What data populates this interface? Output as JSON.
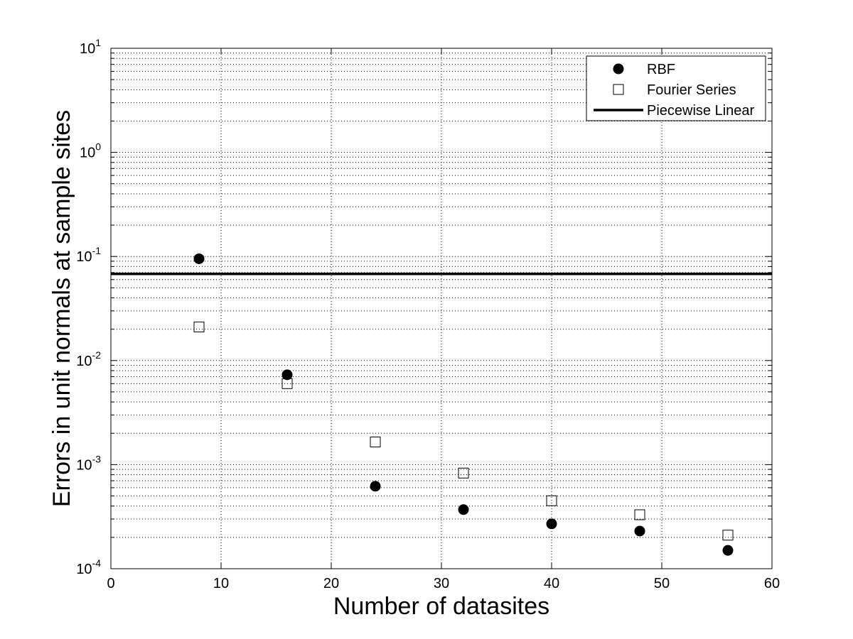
{
  "chart_data": {
    "type": "scatter",
    "xlabel": "Number of datasites",
    "ylabel": "Errors in unit normals at sample sites",
    "xlim": [
      0,
      60
    ],
    "ylim": [
      0.0001,
      10
    ],
    "yscale": "log",
    "grid": true,
    "legend_position": "top-right",
    "x_ticks": [
      0,
      10,
      20,
      30,
      40,
      50,
      60
    ],
    "y_ticks": [
      {
        "value": 0.0001,
        "base": "10",
        "exp": "-4"
      },
      {
        "value": 0.001,
        "base": "10",
        "exp": "-3"
      },
      {
        "value": 0.01,
        "base": "10",
        "exp": "-2"
      },
      {
        "value": 0.1,
        "base": "10",
        "exp": "-1"
      },
      {
        "value": 1,
        "base": "10",
        "exp": "0"
      },
      {
        "value": 10,
        "base": "10",
        "exp": "1"
      }
    ],
    "series": [
      {
        "name": "RBF",
        "marker": "filled-circle",
        "x": [
          8,
          16,
          24,
          32,
          40,
          48,
          56
        ],
        "y": [
          0.095,
          0.0073,
          0.00062,
          0.00037,
          0.00027,
          0.00023,
          0.00015
        ]
      },
      {
        "name": "Fourier Series",
        "marker": "open-square",
        "x": [
          8,
          16,
          24,
          32,
          40,
          48,
          56
        ],
        "y": [
          0.021,
          0.006,
          0.00165,
          0.00083,
          0.00045,
          0.00033,
          0.00021
        ]
      },
      {
        "name": "Piecewise Linear",
        "marker": "line",
        "y_constant": 0.068
      }
    ],
    "colors": {
      "marker": "#000000",
      "grid": "#000000",
      "background": "#ffffff"
    }
  }
}
